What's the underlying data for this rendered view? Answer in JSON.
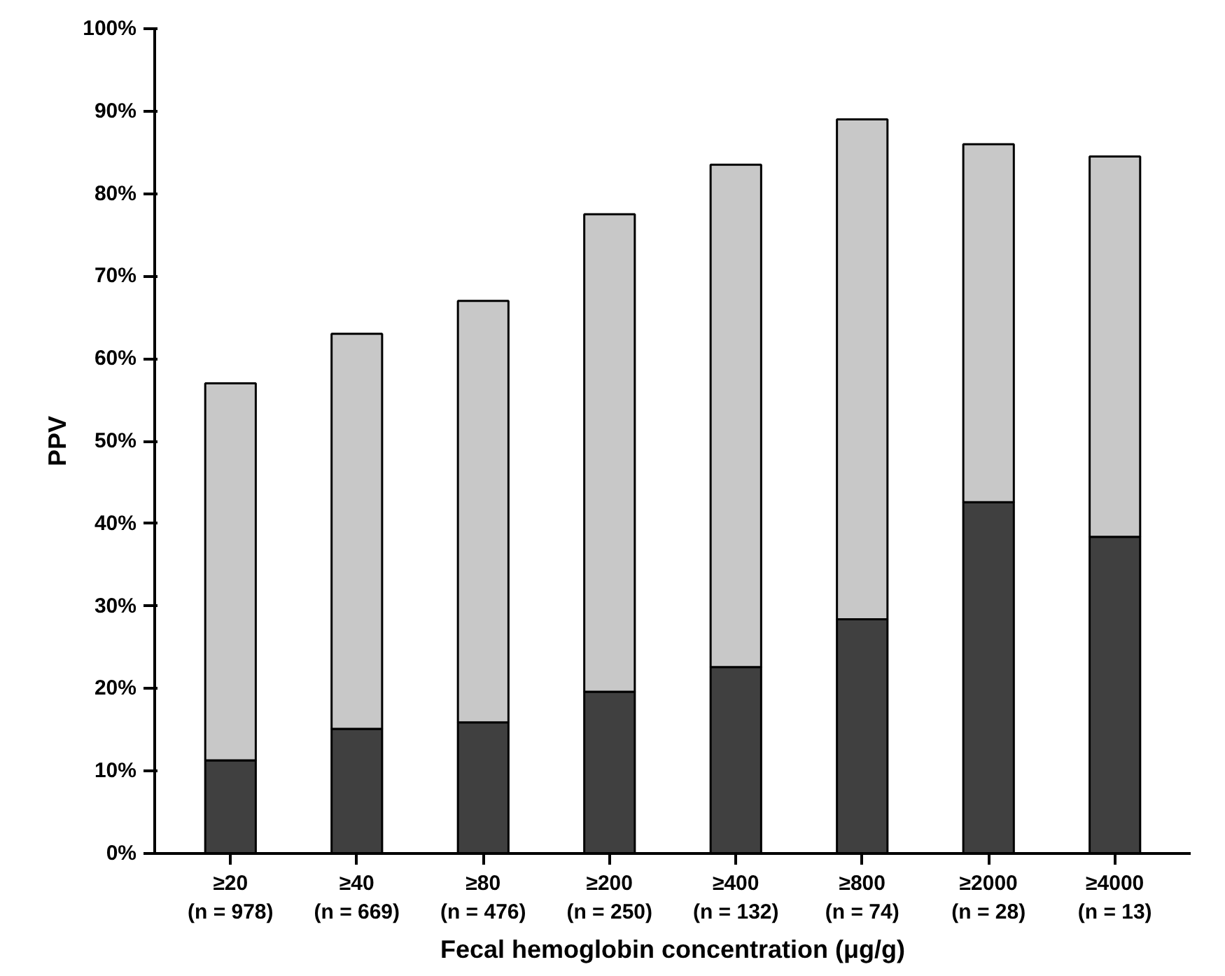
{
  "chart_data": {
    "type": "bar",
    "stacked": true,
    "xlabel": "Fecal hemoglobin concentration (μg/g)",
    "ylabel": "PPV",
    "categories": [
      "≥20\n(n = 978)",
      "≥40\n(n = 669)",
      "≥80\n(n = 476)",
      "≥200\n(n = 250)",
      "≥400\n(n = 132)",
      "≥800\n(n = 74)",
      "≥2000\n(n = 28)",
      "≥4000\n(n = 13)"
    ],
    "series": [
      {
        "color": "#404040",
        "values": [
          11.3,
          15.1,
          15.9,
          19.6,
          22.6,
          28.4,
          42.6,
          38.4
        ]
      },
      {
        "color": "#c8c8c8",
        "values": [
          45.7,
          47.9,
          51.1,
          57.9,
          60.9,
          60.6,
          43.4,
          46.1
        ]
      }
    ],
    "ylim": [
      0,
      100
    ],
    "yticks": [
      {
        "value": 0,
        "label": "0%"
      },
      {
        "value": 10,
        "label": "10%"
      },
      {
        "value": 20,
        "label": "20%"
      },
      {
        "value": 30,
        "label": "30%"
      },
      {
        "value": 40,
        "label": "40%"
      },
      {
        "value": 50,
        "label": "50%"
      },
      {
        "value": 60,
        "label": "60%"
      },
      {
        "value": 70,
        "label": "70%"
      },
      {
        "value": 80,
        "label": "80%"
      },
      {
        "value": 90,
        "label": "90%"
      },
      {
        "value": 100,
        "label": "100%"
      }
    ],
    "grid": false
  }
}
